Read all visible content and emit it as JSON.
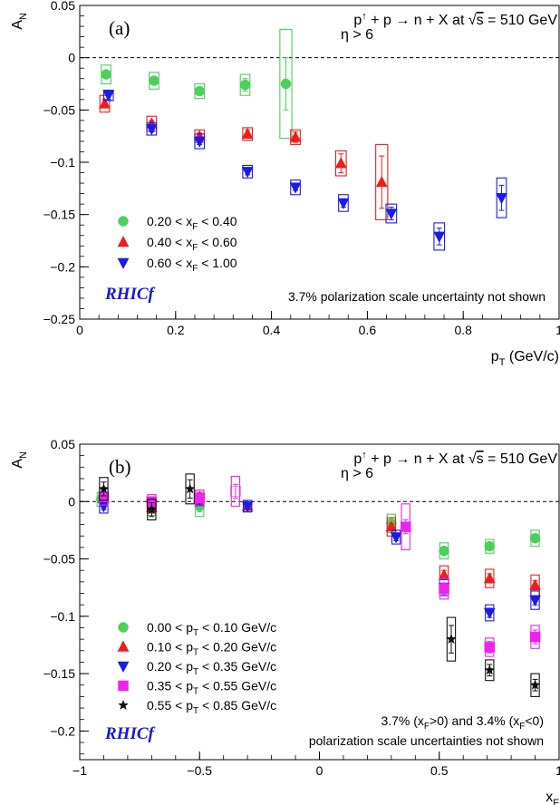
{
  "colors": {
    "green": "#4cd05a",
    "red": "#ee1c1c",
    "blue": "#1c1ce8",
    "magenta": "#ee22ee",
    "black": "#111111",
    "brand": "#1818d8"
  },
  "chart_data": [
    {
      "panel_tag": "(a)",
      "type": "scatter",
      "title": "p↑ + p → n + X at √s = 510 GeV",
      "title_parts": {
        "pre": "p",
        "up": "↑",
        "post": " + p → n + X at ",
        "root": "√",
        "s": "s",
        "tail": " = 510 GeV"
      },
      "subtitle": "η > 6",
      "xlabel": "p",
      "xlabel_sub": "T",
      "xlabel_unit": " (GeV/c)",
      "ylabel": "A",
      "ylabel_sub": "N",
      "xlim": [
        0,
        1
      ],
      "ylim": [
        -0.25,
        0.05
      ],
      "x_ticks": [
        0,
        0.2,
        0.4,
        0.6,
        0.8,
        1
      ],
      "x_tick_labels": [
        "0",
        "0.2",
        "0.4",
        "0.6",
        "0.8",
        "1"
      ],
      "y_ticks": [
        0.05,
        0,
        -0.05,
        -0.1,
        -0.15,
        -0.2,
        -0.25
      ],
      "y_tick_labels": [
        "0.05",
        "0",
        "−0.05",
        "−0.1",
        "−0.15",
        "−0.2",
        "−0.25"
      ],
      "zero_line": "dashed",
      "legend_position": "lower-left",
      "brand": "RHICf",
      "note_lines": [
        "3.7% polarization scale uncertainty not shown"
      ],
      "series": [
        {
          "name": "0.20 < x_F < 0.40",
          "label_parts": {
            "pre": "0.20 < x",
            "sub": "F",
            "post": " < 0.40"
          },
          "marker": "circle",
          "color": "green",
          "points": [
            {
              "x": 0.055,
              "y": -0.016,
              "err": 0.004,
              "sys": 0.009,
              "bw": 0.02
            },
            {
              "x": 0.155,
              "y": -0.022,
              "err": 0.003,
              "sys": 0.008,
              "bw": 0.02
            },
            {
              "x": 0.25,
              "y": -0.032,
              "err": 0.003,
              "sys": 0.007,
              "bw": 0.02
            },
            {
              "x": 0.345,
              "y": -0.026,
              "err": 0.006,
              "sys": 0.01,
              "bw": 0.02
            },
            {
              "x": 0.43,
              "y": -0.025,
              "err": 0.025,
              "sys": 0.052,
              "bw": 0.025
            }
          ]
        },
        {
          "name": "0.40 < x_F < 0.60",
          "label_parts": {
            "pre": "0.40 < x",
            "sub": "F",
            "post": " < 0.60"
          },
          "marker": "triangle-up",
          "color": "red",
          "points": [
            {
              "x": 0.052,
              "y": -0.044,
              "err": 0.004,
              "sys": 0.008,
              "bw": 0.02
            },
            {
              "x": 0.15,
              "y": -0.063,
              "err": 0.003,
              "sys": 0.007,
              "bw": 0.02
            },
            {
              "x": 0.25,
              "y": -0.075,
              "err": 0.003,
              "sys": 0.006,
              "bw": 0.02
            },
            {
              "x": 0.35,
              "y": -0.073,
              "err": 0.004,
              "sys": 0.006,
              "bw": 0.02
            },
            {
              "x": 0.45,
              "y": -0.076,
              "err": 0.005,
              "sys": 0.007,
              "bw": 0.02
            },
            {
              "x": 0.545,
              "y": -0.101,
              "err": 0.009,
              "sys": 0.012,
              "bw": 0.022
            },
            {
              "x": 0.63,
              "y": -0.119,
              "err": 0.025,
              "sys": 0.036,
              "bw": 0.025
            }
          ]
        },
        {
          "name": "0.60 < x_F < 1.00",
          "label_parts": {
            "pre": "0.60 < x",
            "sub": "F",
            "post": " < 1.00"
          },
          "marker": "triangle-down",
          "color": "blue",
          "points": [
            {
              "x": 0.06,
              "y": -0.036,
              "err": 0.004,
              "sys": 0.005,
              "bw": 0.02
            },
            {
              "x": 0.15,
              "y": -0.068,
              "err": 0.003,
              "sys": 0.006,
              "bw": 0.02
            },
            {
              "x": 0.25,
              "y": -0.08,
              "err": 0.003,
              "sys": 0.007,
              "bw": 0.02
            },
            {
              "x": 0.35,
              "y": -0.109,
              "err": 0.003,
              "sys": 0.006,
              "bw": 0.02
            },
            {
              "x": 0.45,
              "y": -0.124,
              "err": 0.003,
              "sys": 0.007,
              "bw": 0.02
            },
            {
              "x": 0.55,
              "y": -0.139,
              "err": 0.004,
              "sys": 0.008,
              "bw": 0.02
            },
            {
              "x": 0.65,
              "y": -0.149,
              "err": 0.006,
              "sys": 0.009,
              "bw": 0.022
            },
            {
              "x": 0.75,
              "y": -0.171,
              "err": 0.008,
              "sys": 0.013,
              "bw": 0.022
            },
            {
              "x": 0.88,
              "y": -0.134,
              "err": 0.012,
              "sys": 0.019,
              "bw": 0.02
            }
          ]
        }
      ]
    },
    {
      "panel_tag": "(b)",
      "type": "scatter",
      "title": "p↑ + p → n + X at √s = 510 GeV",
      "title_parts": {
        "pre": "p",
        "up": "↑",
        "post": " + p → n + X at ",
        "root": "√",
        "s": "s",
        "tail": " = 510 GeV"
      },
      "subtitle": "η > 6",
      "xlabel": "x",
      "xlabel_sub": "F",
      "xlabel_unit": "",
      "ylabel": "A",
      "ylabel_sub": "N",
      "xlim": [
        -1,
        1
      ],
      "ylim": [
        -0.225,
        0.05
      ],
      "x_ticks": [
        -1,
        -0.5,
        0,
        0.5,
        1
      ],
      "x_tick_labels": [
        "−1",
        "−0.5",
        "0",
        "0.5",
        "1"
      ],
      "y_ticks": [
        0.05,
        0,
        -0.05,
        -0.1,
        -0.15,
        -0.2
      ],
      "y_tick_labels": [
        "0.05",
        "0",
        "−0.05",
        "−0.1",
        "−0.15",
        "−0.2"
      ],
      "zero_line": "dashed",
      "legend_position": "lower-left",
      "brand": "RHICf",
      "note_lines": [
        "3.7% (x_F>0) and 3.4% (x_F<0)",
        "polarization scale uncertainties not shown"
      ],
      "note_parts": {
        "a": "3.7% (x",
        "b": "F",
        "c": ">0) and 3.4% (x",
        "d": "F",
        "e": "<0)",
        "line2": "polarization scale uncertainties not shown"
      },
      "series": [
        {
          "name": "0.00 < p_T < 0.10 GeV/c",
          "label_parts": {
            "pre": "0.00 < p",
            "sub": "T",
            "post": " < 0.10 GeV/c"
          },
          "marker": "circle",
          "color": "green",
          "points": [
            {
              "x": -0.91,
              "y": 0.002,
              "err": 0.004,
              "sys": 0.006,
              "bw": 0.035
            },
            {
              "x": -0.7,
              "y": -0.006,
              "err": 0.003,
              "sys": 0.006,
              "bw": 0.035
            },
            {
              "x": -0.5,
              "y": -0.004,
              "err": 0.005,
              "sys": 0.009,
              "bw": 0.035
            },
            {
              "x": 0.3,
              "y": -0.019,
              "err": 0.003,
              "sys": 0.008,
              "bw": 0.035
            },
            {
              "x": 0.52,
              "y": -0.043,
              "err": 0.003,
              "sys": 0.007,
              "bw": 0.035
            },
            {
              "x": 0.71,
              "y": -0.039,
              "err": 0.003,
              "sys": 0.006,
              "bw": 0.035
            },
            {
              "x": 0.9,
              "y": -0.032,
              "err": 0.003,
              "sys": 0.007,
              "bw": 0.035
            }
          ]
        },
        {
          "name": "0.10 < p_T < 0.20 GeV/c",
          "label_parts": {
            "pre": "0.10 < p",
            "sub": "T",
            "post": " < 0.20 GeV/c"
          },
          "marker": "triangle-up",
          "color": "red",
          "points": [
            {
              "x": -0.9,
              "y": 0.003,
              "err": 0.003,
              "sys": 0.005,
              "bw": 0.035
            },
            {
              "x": -0.7,
              "y": -0.005,
              "err": 0.003,
              "sys": 0.005,
              "bw": 0.035
            },
            {
              "x": -0.5,
              "y": 0.004,
              "err": 0.004,
              "sys": 0.006,
              "bw": 0.035
            },
            {
              "x": -0.3,
              "y": -0.004,
              "err": 0.003,
              "sys": 0.005,
              "bw": 0.035
            },
            {
              "x": 0.3,
              "y": -0.022,
              "err": 0.003,
              "sys": 0.008,
              "bw": 0.035
            },
            {
              "x": 0.52,
              "y": -0.064,
              "err": 0.004,
              "sys": 0.008,
              "bw": 0.035
            },
            {
              "x": 0.71,
              "y": -0.067,
              "err": 0.004,
              "sys": 0.008,
              "bw": 0.035
            },
            {
              "x": 0.9,
              "y": -0.073,
              "err": 0.004,
              "sys": 0.009,
              "bw": 0.035
            }
          ]
        },
        {
          "name": "0.20 < p_T < 0.35 GeV/c",
          "label_parts": {
            "pre": "0.20 < p",
            "sub": "T",
            "post": " < 0.35 GeV/c"
          },
          "marker": "triangle-down",
          "color": "blue",
          "points": [
            {
              "x": -0.9,
              "y": -0.004,
              "err": 0.003,
              "sys": 0.006,
              "bw": 0.035
            },
            {
              "x": -0.7,
              "y": -0.003,
              "err": 0.003,
              "sys": 0.005,
              "bw": 0.035
            },
            {
              "x": -0.5,
              "y": 0.002,
              "err": 0.003,
              "sys": 0.005,
              "bw": 0.035
            },
            {
              "x": -0.3,
              "y": -0.004,
              "err": 0.003,
              "sys": 0.005,
              "bw": 0.035
            },
            {
              "x": 0.32,
              "y": -0.031,
              "err": 0.003,
              "sys": 0.006,
              "bw": 0.035
            },
            {
              "x": 0.52,
              "y": -0.075,
              "err": 0.004,
              "sys": 0.007,
              "bw": 0.035
            },
            {
              "x": 0.71,
              "y": -0.097,
              "err": 0.004,
              "sys": 0.007,
              "bw": 0.035
            },
            {
              "x": 0.9,
              "y": -0.086,
              "err": 0.004,
              "sys": 0.008,
              "bw": 0.035
            }
          ]
        },
        {
          "name": "0.35 < p_T < 0.55 GeV/c",
          "label_parts": {
            "pre": "0.35 < p",
            "sub": "T",
            "post": " < 0.55 GeV/c"
          },
          "marker": "square",
          "color": "magenta",
          "points": [
            {
              "x": -0.9,
              "y": 0.004,
              "err": 0.004,
              "sys": 0.007,
              "bw": 0.035
            },
            {
              "x": -0.7,
              "y": 0.0,
              "err": 0.004,
              "sys": 0.006,
              "bw": 0.035
            },
            {
              "x": -0.5,
              "y": 0.003,
              "err": 0.004,
              "sys": 0.007,
              "bw": 0.035
            },
            {
              "x": -0.35,
              "y": 0.009,
              "err": 0.006,
              "sys": 0.013,
              "bw": 0.035,
              "open": true
            },
            {
              "x": 0.36,
              "y": -0.022,
              "err": 0.006,
              "sys": 0.02,
              "bw": 0.035
            },
            {
              "x": 0.52,
              "y": -0.076,
              "err": 0.005,
              "sys": 0.009,
              "bw": 0.035
            },
            {
              "x": 0.71,
              "y": -0.127,
              "err": 0.005,
              "sys": 0.008,
              "bw": 0.035
            },
            {
              "x": 0.9,
              "y": -0.118,
              "err": 0.006,
              "sys": 0.01,
              "bw": 0.035
            }
          ]
        },
        {
          "name": "0.55 < p_T < 0.85 GeV/c",
          "label_parts": {
            "pre": "0.55 < p",
            "sub": "T",
            "post": " < 0.85 GeV/c"
          },
          "marker": "star",
          "color": "black",
          "points": [
            {
              "x": -0.9,
              "y": 0.011,
              "err": 0.006,
              "sys": 0.01,
              "bw": 0.035
            },
            {
              "x": -0.7,
              "y": -0.007,
              "err": 0.006,
              "sys": 0.009,
              "bw": 0.035
            },
            {
              "x": -0.54,
              "y": 0.011,
              "err": 0.008,
              "sys": 0.013,
              "bw": 0.035
            },
            {
              "x": 0.55,
              "y": -0.12,
              "err": 0.012,
              "sys": 0.019,
              "bw": 0.035
            },
            {
              "x": 0.71,
              "y": -0.147,
              "err": 0.005,
              "sys": 0.009,
              "bw": 0.035
            },
            {
              "x": 0.9,
              "y": -0.16,
              "err": 0.005,
              "sys": 0.01,
              "bw": 0.035
            }
          ]
        }
      ]
    }
  ]
}
